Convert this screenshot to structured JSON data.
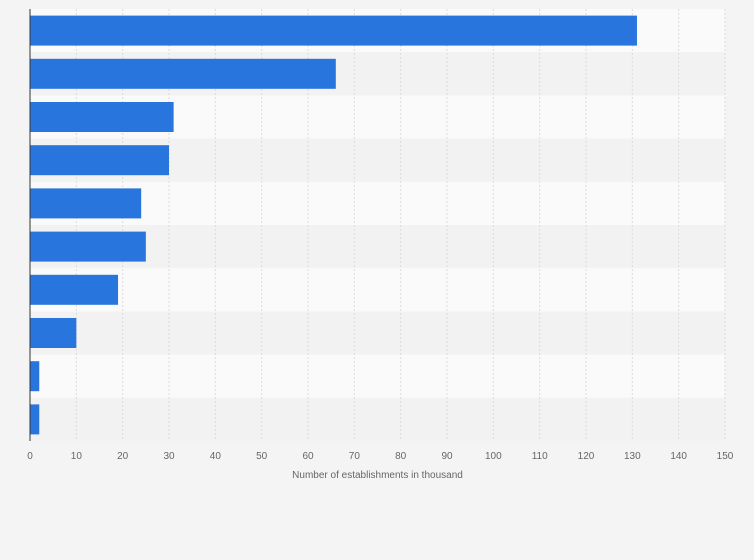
{
  "chart_data": {
    "type": "bar",
    "orientation": "horizontal",
    "categories": [
      "",
      "",
      "",
      "",
      "",
      "",
      "",
      "",
      "",
      ""
    ],
    "values": [
      131,
      66,
      31,
      30,
      24,
      25,
      19,
      10,
      2,
      2
    ],
    "xlabel": "Number of establishments in thousand",
    "ylabel": "",
    "xlim": [
      0,
      150
    ],
    "xticks": [
      0,
      10,
      20,
      30,
      40,
      50,
      60,
      70,
      80,
      90,
      100,
      110,
      120,
      130,
      140,
      150
    ],
    "grid": true,
    "colors": {
      "bar": "#2876dd",
      "background": "#f4f4f4",
      "band_light": "#fafafa",
      "band_dark": "#f2f2f2",
      "gridline": "#dcdcdc",
      "axis": "#333333"
    }
  }
}
